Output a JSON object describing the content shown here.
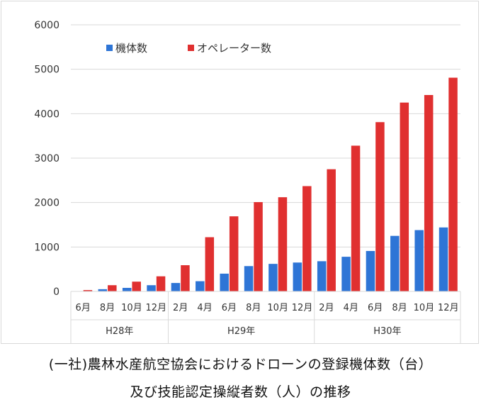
{
  "chart_data": {
    "type": "bar",
    "categories": [
      "6月",
      "8月",
      "10月",
      "12月",
      "2月",
      "4月",
      "6月",
      "8月",
      "10月",
      "12月",
      "2月",
      "4月",
      "6月",
      "8月",
      "10月",
      "12月"
    ],
    "groups": [
      {
        "label": "H28年",
        "count": 4
      },
      {
        "label": "H29年",
        "count": 6
      },
      {
        "label": "H30年",
        "count": 6
      }
    ],
    "series": [
      {
        "name": "機体数",
        "color": "#2e75d6",
        "values": [
          0,
          50,
          80,
          140,
          190,
          230,
          400,
          570,
          620,
          650,
          680,
          780,
          910,
          1250,
          1380,
          1440
        ]
      },
      {
        "name": "オペレーター数",
        "color": "#e03030",
        "values": [
          30,
          140,
          220,
          340,
          590,
          1220,
          1690,
          2010,
          2120,
          2370,
          2750,
          3280,
          3810,
          4250,
          4420,
          4810
        ]
      }
    ],
    "ylim": [
      0,
      6000
    ],
    "yticks": [
      "0",
      "1000",
      "2000",
      "3000",
      "4000",
      "5000",
      "6000"
    ],
    "grid": true,
    "legend_position": "top-left",
    "xlabel": "",
    "ylabel": ""
  },
  "caption": {
    "line1": "(一社)農林水産航空協会におけるドローンの登録機体数（台）",
    "line2": "及び技能認定操縦者数（人）の推移"
  }
}
